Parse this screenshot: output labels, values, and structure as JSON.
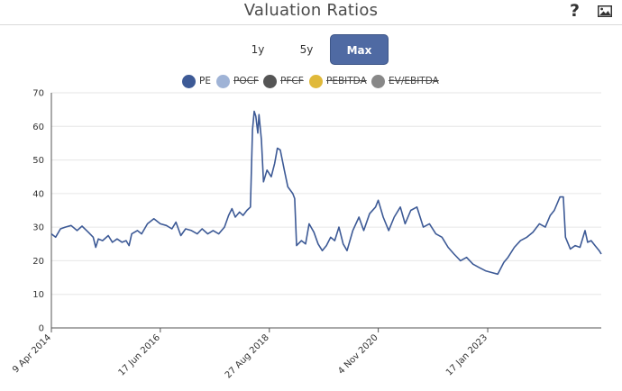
{
  "header": {
    "title": "Valuation Ratios",
    "help_icon": "question-mark-icon",
    "export_icon": "image-icon"
  },
  "range_tabs": [
    {
      "label": "1y",
      "active": false
    },
    {
      "label": "5y",
      "active": false
    },
    {
      "label": "Max",
      "active": true
    }
  ],
  "legend": [
    {
      "label": "PE",
      "color": "#3d5a96",
      "hidden": false
    },
    {
      "label": "POCF",
      "color": "#9fb3d6",
      "hidden": true
    },
    {
      "label": "PFCF",
      "color": "#555555",
      "hidden": true
    },
    {
      "label": "PEBITDA",
      "color": "#e0b93a",
      "hidden": true
    },
    {
      "label": "EV/EBITDA",
      "color": "#888888",
      "hidden": true
    }
  ],
  "chart_data": {
    "type": "line",
    "title": "",
    "xlabel": "",
    "ylabel": "",
    "ylim": [
      0,
      70
    ],
    "yticks": [
      0,
      10,
      20,
      30,
      40,
      50,
      60,
      70
    ],
    "xlim": [
      "2014-04-09",
      "2025-04-30"
    ],
    "xticks": [
      "9 Apr 2014",
      "17 Jun 2016",
      "27 Aug 2018",
      "4 Nov 2020",
      "17 Jan 2023"
    ],
    "xtick_dates": [
      "2014-04-09",
      "2016-06-17",
      "2018-08-27",
      "2020-11-04",
      "2023-01-17"
    ],
    "grid": true,
    "series": [
      {
        "name": "PE",
        "color": "#3d5a96",
        "points": [
          [
            "2014-04-09",
            28.0
          ],
          [
            "2014-05-10",
            27.0
          ],
          [
            "2014-06-15",
            29.5
          ],
          [
            "2014-07-20",
            30.0
          ],
          [
            "2014-09-01",
            30.5
          ],
          [
            "2014-10-15",
            29.0
          ],
          [
            "2014-11-20",
            30.3
          ],
          [
            "2015-01-05",
            28.5
          ],
          [
            "2015-02-10",
            27.0
          ],
          [
            "2015-03-01",
            24.0
          ],
          [
            "2015-03-20",
            26.5
          ],
          [
            "2015-04-20",
            26.0
          ],
          [
            "2015-06-01",
            27.5
          ],
          [
            "2015-07-01",
            25.5
          ],
          [
            "2015-08-05",
            26.5
          ],
          [
            "2015-09-10",
            25.5
          ],
          [
            "2015-10-10",
            26.0
          ],
          [
            "2015-11-01",
            24.5
          ],
          [
            "2015-11-20",
            28.0
          ],
          [
            "2016-01-01",
            29.0
          ],
          [
            "2016-02-01",
            28.0
          ],
          [
            "2016-03-15",
            31.0
          ],
          [
            "2016-05-01",
            32.5
          ],
          [
            "2016-06-17",
            31.0
          ],
          [
            "2016-08-01",
            30.5
          ],
          [
            "2016-09-10",
            29.5
          ],
          [
            "2016-10-10",
            31.5
          ],
          [
            "2016-11-15",
            27.5
          ],
          [
            "2016-12-20",
            29.5
          ],
          [
            "2017-02-01",
            29.0
          ],
          [
            "2017-03-15",
            28.0
          ],
          [
            "2017-04-20",
            29.5
          ],
          [
            "2017-06-01",
            28.0
          ],
          [
            "2017-07-10",
            29.0
          ],
          [
            "2017-08-20",
            28.0
          ],
          [
            "2017-10-01",
            30.0
          ],
          [
            "2017-11-01",
            33.5
          ],
          [
            "2017-11-25",
            35.5
          ],
          [
            "2017-12-20",
            33.0
          ],
          [
            "2018-01-20",
            34.5
          ],
          [
            "2018-02-15",
            33.5
          ],
          [
            "2018-03-15",
            35.0
          ],
          [
            "2018-04-10",
            36.0
          ],
          [
            "2018-04-25",
            59.0
          ],
          [
            "2018-05-08",
            64.5
          ],
          [
            "2018-05-20",
            63.0
          ],
          [
            "2018-06-03",
            58.0
          ],
          [
            "2018-06-12",
            63.5
          ],
          [
            "2018-06-30",
            56.0
          ],
          [
            "2018-07-15",
            43.5
          ],
          [
            "2018-08-10",
            47.0
          ],
          [
            "2018-09-10",
            45.0
          ],
          [
            "2018-10-05",
            49.0
          ],
          [
            "2018-10-25",
            53.5
          ],
          [
            "2018-11-15",
            53.0
          ],
          [
            "2018-12-15",
            47.0
          ],
          [
            "2019-01-10",
            42.0
          ],
          [
            "2019-02-15",
            40.0
          ],
          [
            "2019-03-01",
            38.5
          ],
          [
            "2019-03-15",
            24.5
          ],
          [
            "2019-04-20",
            26.0
          ],
          [
            "2019-05-20",
            25.0
          ],
          [
            "2019-06-15",
            31.0
          ],
          [
            "2019-07-20",
            28.5
          ],
          [
            "2019-08-20",
            25.0
          ],
          [
            "2019-09-20",
            23.0
          ],
          [
            "2019-10-20",
            24.5
          ],
          [
            "2019-11-20",
            27.0
          ],
          [
            "2019-12-20",
            26.0
          ],
          [
            "2020-01-20",
            30.0
          ],
          [
            "2020-02-20",
            25.0
          ],
          [
            "2020-03-20",
            23.0
          ],
          [
            "2020-05-01",
            29.0
          ],
          [
            "2020-06-15",
            33.0
          ],
          [
            "2020-07-20",
            29.0
          ],
          [
            "2020-09-01",
            34.0
          ],
          [
            "2020-10-15",
            36.0
          ],
          [
            "2020-11-04",
            38.0
          ],
          [
            "2020-12-10",
            33.0
          ],
          [
            "2021-01-20",
            29.0
          ],
          [
            "2021-03-01",
            33.0
          ],
          [
            "2021-04-15",
            36.0
          ],
          [
            "2021-05-20",
            31.0
          ],
          [
            "2021-07-01",
            35.0
          ],
          [
            "2021-08-15",
            36.0
          ],
          [
            "2021-10-01",
            30.0
          ],
          [
            "2021-11-15",
            31.0
          ],
          [
            "2022-01-01",
            28.0
          ],
          [
            "2022-02-15",
            27.0
          ],
          [
            "2022-04-01",
            24.0
          ],
          [
            "2022-05-15",
            22.0
          ],
          [
            "2022-07-01",
            20.0
          ],
          [
            "2022-08-15",
            21.0
          ],
          [
            "2022-10-01",
            19.0
          ],
          [
            "2022-11-15",
            18.0
          ],
          [
            "2023-01-01",
            17.0
          ],
          [
            "2023-02-15",
            16.5
          ],
          [
            "2023-04-01",
            16.0
          ],
          [
            "2023-05-15",
            19.5
          ],
          [
            "2023-06-15",
            21.0
          ],
          [
            "2023-08-01",
            24.0
          ],
          [
            "2023-09-15",
            26.0
          ],
          [
            "2023-11-01",
            27.0
          ],
          [
            "2023-12-15",
            28.5
          ],
          [
            "2024-02-01",
            31.0
          ],
          [
            "2024-03-15",
            30.0
          ],
          [
            "2024-04-20",
            33.5
          ],
          [
            "2024-05-20",
            35.0
          ],
          [
            "2024-07-01",
            39.0
          ],
          [
            "2024-07-25",
            39.0
          ],
          [
            "2024-08-10",
            27.0
          ],
          [
            "2024-09-15",
            23.5
          ],
          [
            "2024-10-20",
            24.5
          ],
          [
            "2024-11-25",
            24.0
          ],
          [
            "2025-01-01",
            29.0
          ],
          [
            "2025-01-20",
            25.5
          ],
          [
            "2025-02-15",
            26.0
          ],
          [
            "2025-03-15",
            24.5
          ],
          [
            "2025-04-15",
            23.0
          ],
          [
            "2025-04-30",
            22.0
          ]
        ]
      }
    ]
  }
}
